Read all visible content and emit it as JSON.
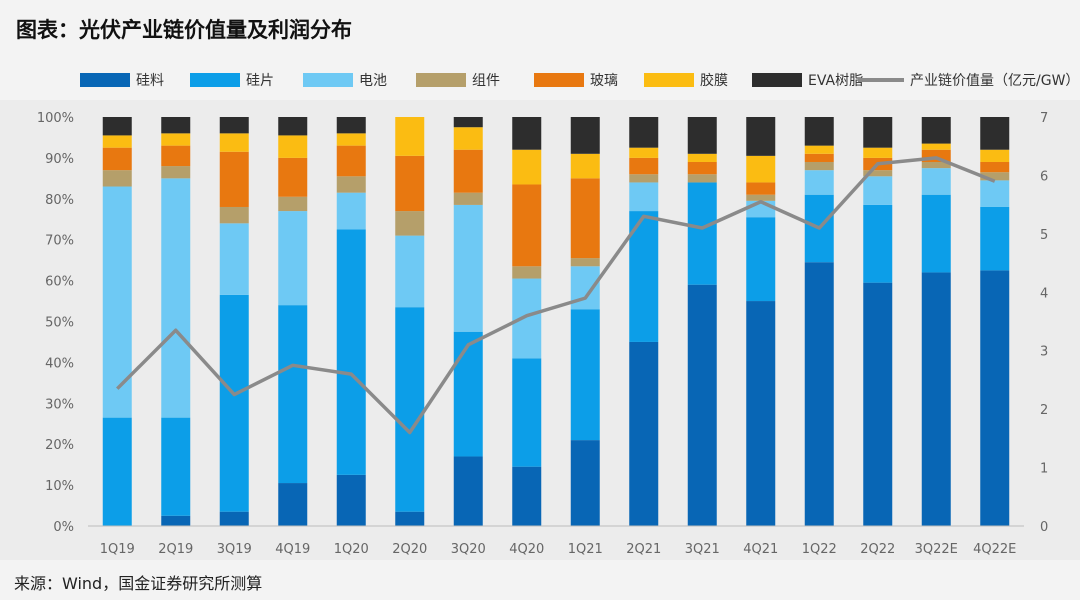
{
  "title": "图表：光伏产业链价值量及利润分布",
  "source": "来源：Wind，国金证券研究所测算",
  "chart_data": {
    "type": "bar",
    "stacked": true,
    "percent_stacked": true,
    "categories": [
      "1Q19",
      "2Q19",
      "3Q19",
      "4Q19",
      "1Q20",
      "2Q20",
      "3Q20",
      "4Q20",
      "1Q21",
      "2Q21",
      "3Q21",
      "4Q21",
      "1Q22",
      "2Q22",
      "3Q22E",
      "4Q22E"
    ],
    "y_left": {
      "range": [
        0,
        100
      ],
      "ticks": [
        "0%",
        "10%",
        "20%",
        "30%",
        "40%",
        "50%",
        "60%",
        "70%",
        "80%",
        "90%",
        "100%"
      ]
    },
    "y_right": {
      "range": [
        0,
        7
      ],
      "ticks": [
        "0",
        "1",
        "2",
        "3",
        "4",
        "5",
        "6",
        "7"
      ]
    },
    "series": [
      {
        "name": "硅料",
        "color": "#0866b5",
        "values": [
          0,
          2.5,
          3.5,
          10.5,
          12.5,
          3.5,
          17,
          14.5,
          21,
          45,
          59,
          55,
          64.5,
          59.5,
          62,
          62.5
        ]
      },
      {
        "name": "硅片",
        "color": "#0c9ee8",
        "values": [
          26.5,
          24,
          53,
          43.5,
          60,
          50,
          30.5,
          26.5,
          32,
          32,
          25,
          20.5,
          16.5,
          19,
          19,
          15.5
        ]
      },
      {
        "name": "电池",
        "color": "#6ec9f4",
        "values": [
          56.5,
          58.5,
          17.5,
          23,
          9,
          17.5,
          31,
          19.5,
          10.5,
          7,
          0,
          4,
          6,
          7,
          6.5,
          6.5
        ]
      },
      {
        "name": "组件",
        "color": "#b59f6a",
        "values": [
          4,
          3,
          4,
          3.5,
          4,
          6,
          3,
          3,
          2,
          2,
          2,
          1.5,
          2,
          1.5,
          1.5,
          2
        ]
      },
      {
        "name": "玻璃",
        "color": "#e87810",
        "values": [
          5.5,
          5,
          13.5,
          9.5,
          7.5,
          13.5,
          10.5,
          20,
          19.5,
          4,
          3,
          3,
          2,
          3,
          3,
          2.5
        ]
      },
      {
        "name": "胶膜",
        "color": "#fbbc12",
        "values": [
          3,
          3,
          4.5,
          5.5,
          3,
          9.5,
          5.5,
          8.5,
          6,
          2.5,
          2,
          6.5,
          2,
          2.5,
          1.5,
          3
        ]
      },
      {
        "name": "EVA树脂",
        "color": "#2d2d2d",
        "values": [
          4.5,
          4,
          4,
          4.5,
          4,
          0,
          2.5,
          8,
          9,
          7.5,
          9,
          9.5,
          7,
          7.5,
          6.5,
          8
        ]
      }
    ],
    "line": {
      "name": "产业链价值量（亿元/GW）",
      "color": "#8a8a8a",
      "axis": "right",
      "values": [
        2.35,
        3.35,
        2.25,
        2.75,
        2.6,
        1.6,
        3.1,
        3.6,
        3.9,
        5.3,
        5.1,
        5.55,
        5.1,
        6.2,
        6.3,
        5.9
      ]
    },
    "legend_position": "top"
  }
}
